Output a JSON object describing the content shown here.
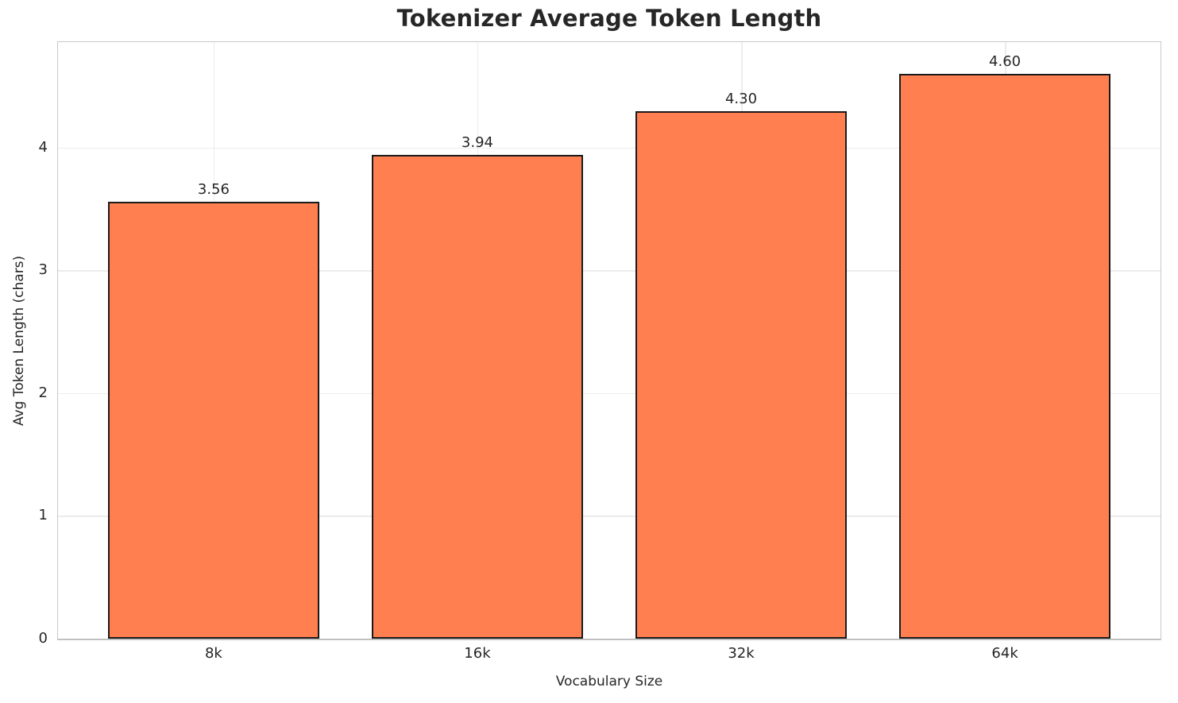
{
  "chart_data": {
    "type": "bar",
    "title": "Tokenizer Average Token Length",
    "xlabel": "Vocabulary Size",
    "ylabel": "Avg Token Length (chars)",
    "categories": [
      "8k",
      "16k",
      "32k",
      "64k"
    ],
    "values": [
      3.56,
      3.94,
      4.3,
      4.6
    ],
    "value_labels": [
      "3.56",
      "3.94",
      "4.30",
      "4.60"
    ],
    "ytick_labels": [
      "0",
      "1",
      "2",
      "3",
      "4"
    ],
    "yticks": [
      0,
      1,
      2,
      3,
      4
    ],
    "ylim": [
      0,
      4.86
    ],
    "grid": true,
    "legend_visible": false,
    "colors": {
      "bar_fill": "#FF7F50",
      "bar_edge": "#1a1a1a",
      "grid": "#ececec",
      "spine": "#c9c9c9",
      "spine_bottom": "#c0c0c0",
      "text": "#262626",
      "background": "#ffffff"
    }
  }
}
